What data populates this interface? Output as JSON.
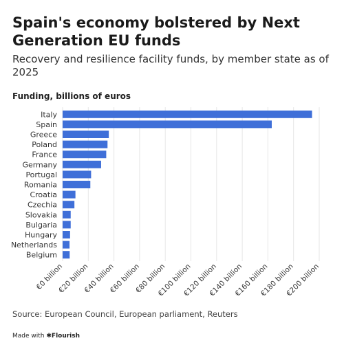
{
  "title": "Spain's economy bolstered by Next Generation EU funds",
  "subtitle": "Recovery and resilience facility funds, by member state as of 2025",
  "source": "Source: European Council, European parliament, Reuters",
  "footer": {
    "made_with": "Made with",
    "brand": "Flourish"
  },
  "colors": {
    "bar": "#3f6fd8",
    "grid": "#e6e6e6",
    "text": "#333333"
  },
  "chart_data": {
    "type": "bar",
    "orientation": "horizontal",
    "ylabel": "Funding, billions of euros",
    "categories": [
      "Italy",
      "Spain",
      "Greece",
      "Poland",
      "France",
      "Germany",
      "Portugal",
      "Romania",
      "Croatia",
      "Czechia",
      "Slovakia",
      "Bulgaria",
      "Hungary",
      "Netherlands",
      "Belgium"
    ],
    "values": [
      194.4,
      163.0,
      36.0,
      35.0,
      34.0,
      30.0,
      22.2,
      21.6,
      10.0,
      9.2,
      6.3,
      6.3,
      5.8,
      5.4,
      5.5
    ],
    "xlim": [
      0,
      200
    ],
    "ticks": [
      0,
      20,
      40,
      60,
      80,
      100,
      120,
      140,
      160,
      180,
      200
    ],
    "tick_labels": [
      "€0 billion",
      "€20 billion",
      "€40 billion",
      "€60 billion",
      "€80 billion",
      "€100 billion",
      "€120 billion",
      "€140 billion",
      "€160 billion",
      "€180 billion",
      "€200 billion"
    ],
    "grid": true
  }
}
